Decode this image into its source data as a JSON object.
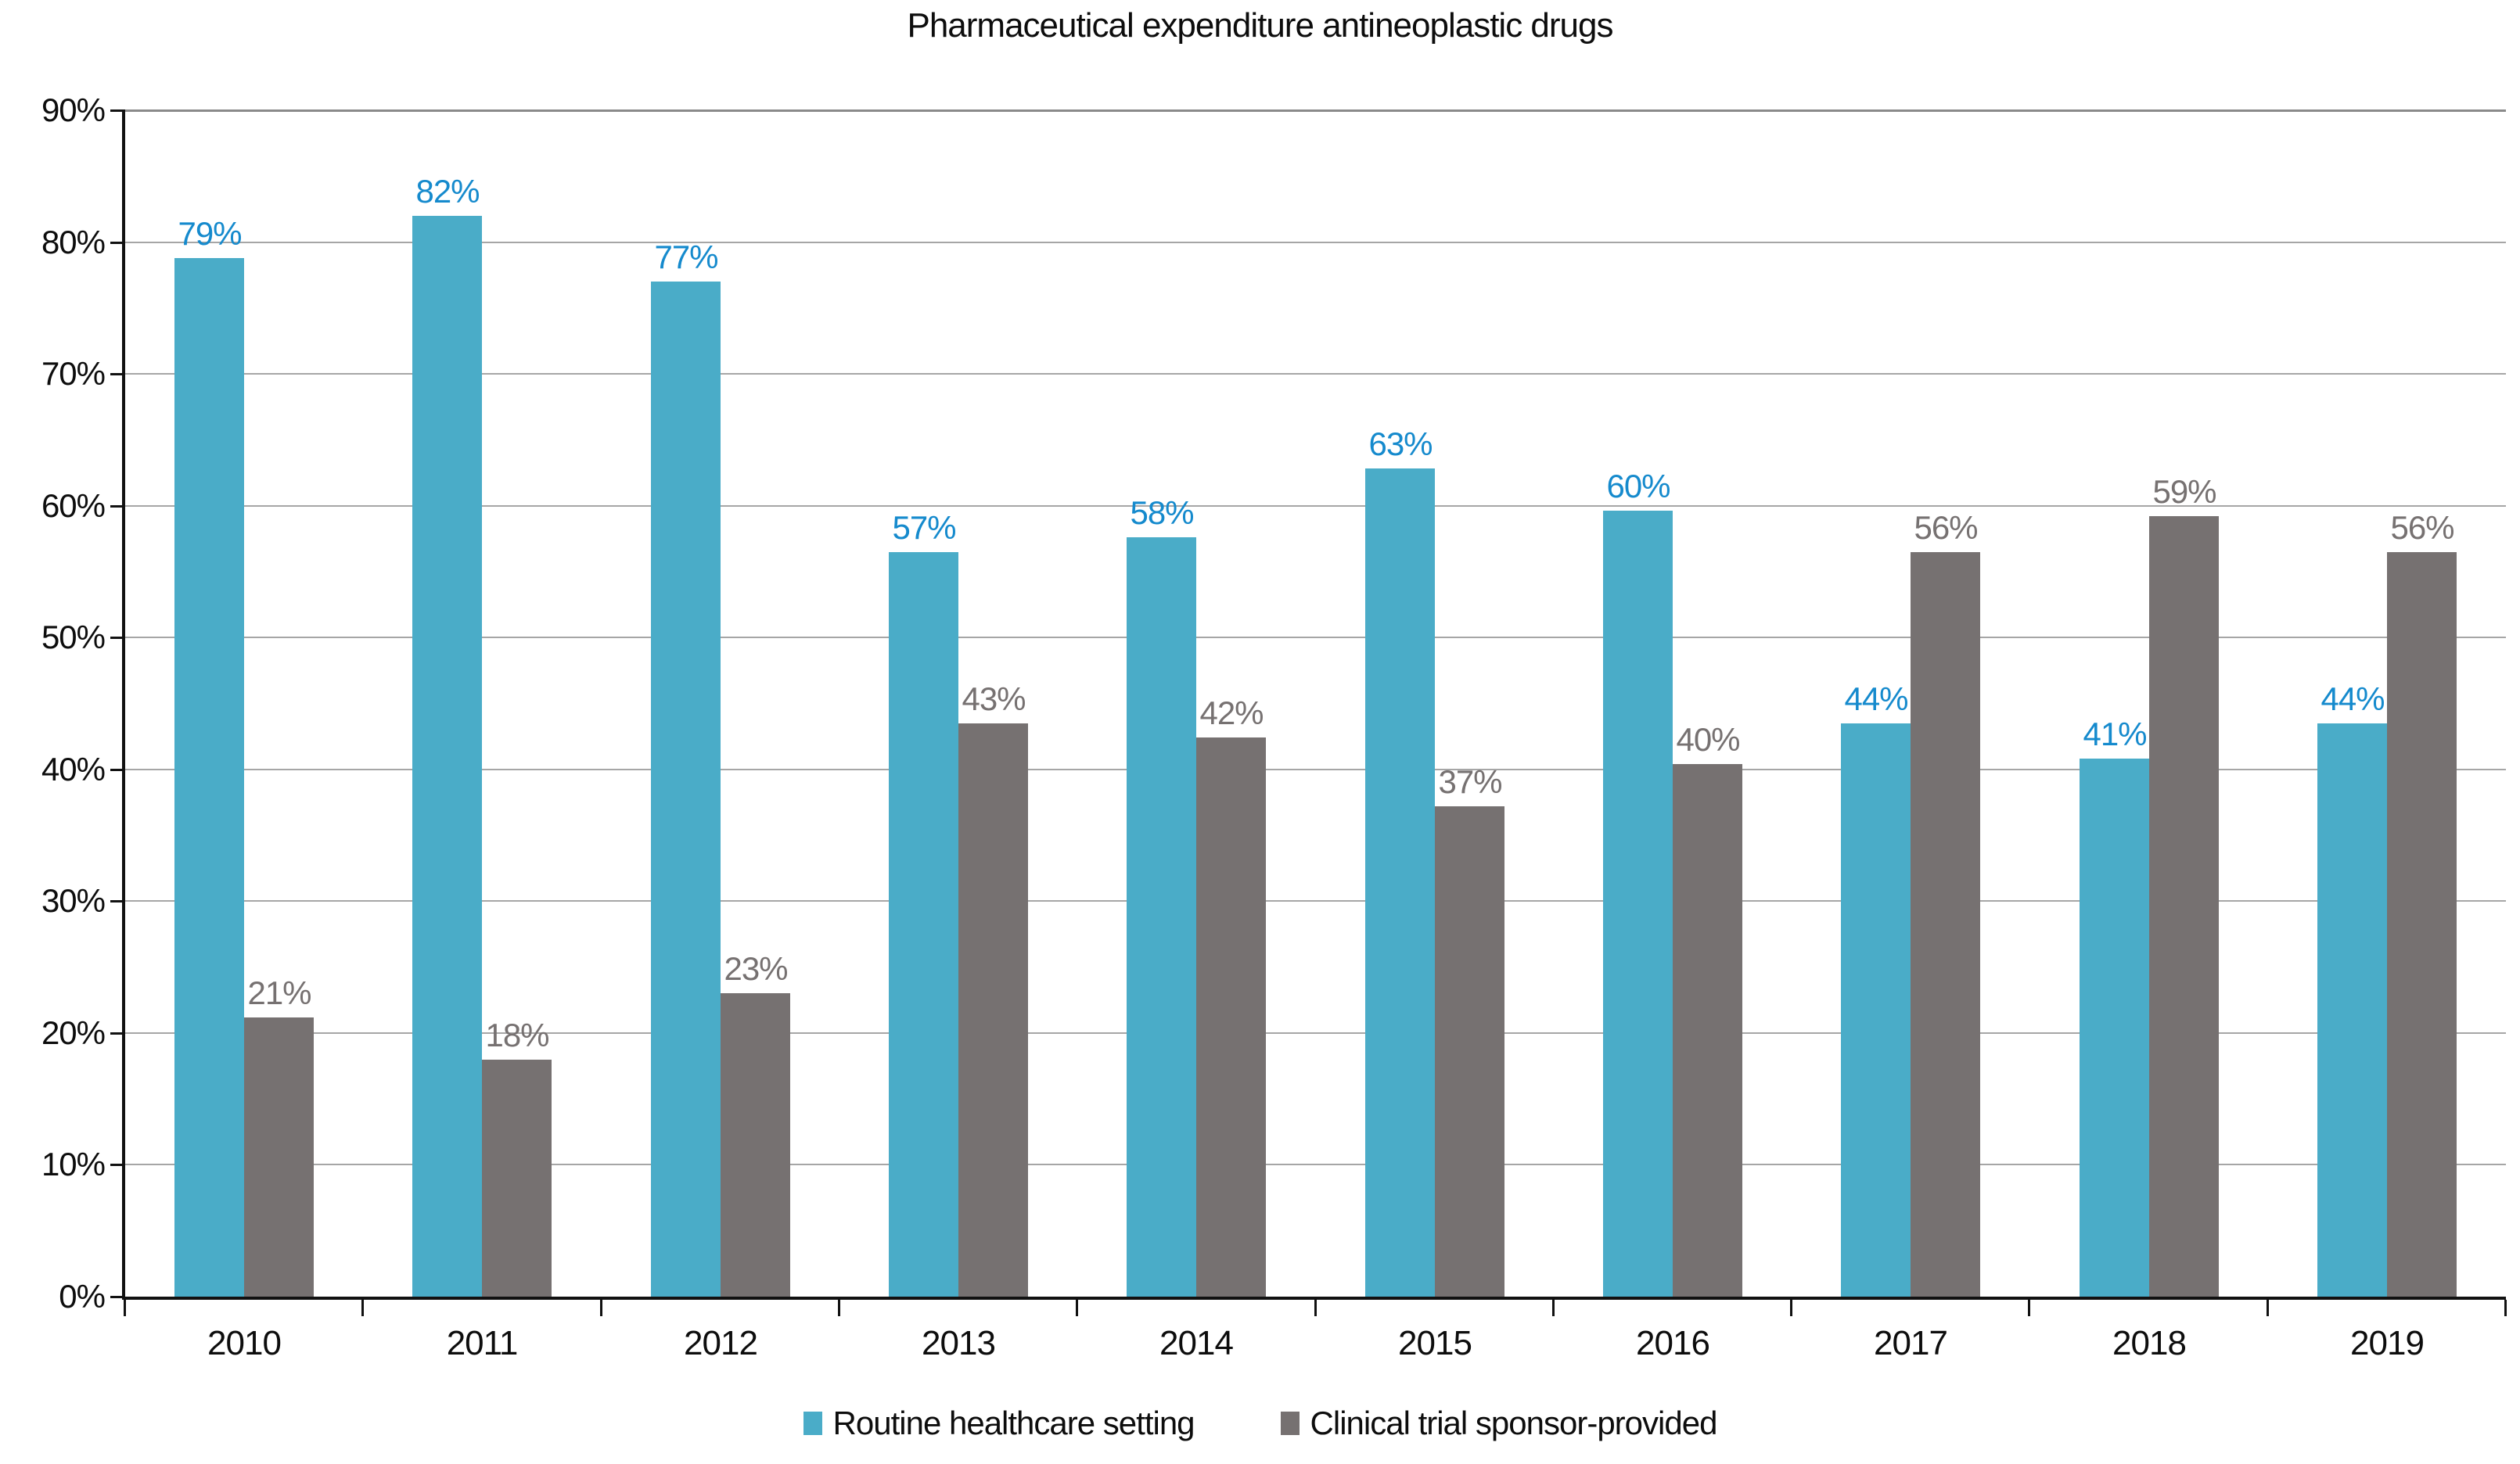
{
  "title": "Pharmaceutical expenditure antineoplastic drugs",
  "chart_data": {
    "type": "bar",
    "title": "Pharmaceutical expenditure antineoplastic drugs",
    "categories": [
      "2010",
      "2011",
      "2012",
      "2013",
      "2014",
      "2015",
      "2016",
      "2017",
      "2018",
      "2019"
    ],
    "series": [
      {
        "name": "Routine healthcare setting",
        "color": "#4AACC8",
        "label_color": "#158ACD",
        "values_pct": [
          79,
          82,
          77,
          57,
          58,
          63,
          60,
          44,
          41,
          44
        ],
        "labels": [
          "79%",
          "82%",
          "77%",
          "57%",
          "58%",
          "63%",
          "60%",
          "44%",
          "41%",
          "44%"
        ],
        "bar_heights_pct": [
          78.8,
          82.0,
          77.0,
          56.5,
          57.6,
          62.8,
          59.6,
          43.5,
          40.8,
          43.5
        ]
      },
      {
        "name": "Clinical trial sponsor-provided",
        "color": "#767171",
        "label_color": "#767171",
        "values_pct": [
          21,
          18,
          23,
          43,
          42,
          37,
          40,
          56,
          59,
          56
        ],
        "labels": [
          "21%",
          "18%",
          "23%",
          "43%",
          "42%",
          "37%",
          "40%",
          "56%",
          "59%",
          "56%"
        ],
        "bar_heights_pct": [
          21.2,
          18.0,
          23.0,
          43.5,
          42.4,
          37.2,
          40.4,
          56.5,
          59.2,
          56.5
        ]
      }
    ],
    "y_axis": {
      "min": 0,
      "max": 90,
      "step": 10,
      "tick_labels": [
        "0%",
        "10%",
        "20%",
        "30%",
        "40%",
        "50%",
        "60%",
        "70%",
        "80%",
        "90%"
      ]
    },
    "grid": true,
    "legend_position": "bottom"
  }
}
